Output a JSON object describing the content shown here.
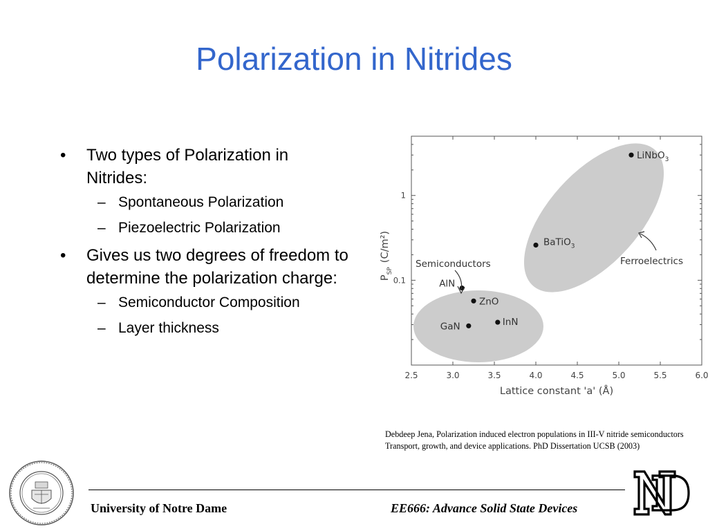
{
  "slide": {
    "title": "Polarization in Nitrides",
    "bullets": [
      {
        "text": "Two types of Polarization in Nitrides:",
        "subs": [
          "Spontaneous Polarization",
          "Piezoelectric Polarization"
        ]
      },
      {
        "text": "Gives us two degrees of freedom to determine the polarization charge:",
        "subs": [
          "Semiconductor Composition",
          "Layer thickness"
        ]
      }
    ],
    "citation": "Debdeep Jena, Polarization induced electron populations in III-V nitride semiconductors Transport, growth, and device applications. PhD Dissertation UCSB (2003)",
    "footer_left": "University of Notre Dame",
    "footer_right": "EE666: Advance Solid State Devices"
  },
  "colors": {
    "title": "#3366cc",
    "ellipse_fill": "#cccccc",
    "axis": "#555555"
  },
  "chart_data": {
    "type": "scatter",
    "xlabel": "Lattice constant 'a' (Å)",
    "ylabel_main": "P",
    "ylabel_sub": "SP",
    "ylabel_unit": "(C/m²)",
    "xlim": [
      2.5,
      6.0
    ],
    "ylim": [
      0.01,
      5
    ],
    "yscale": "log",
    "xticks": [
      "2.5",
      "3.0",
      "3.5",
      "4.0",
      "4.5",
      "5.0",
      "5.5",
      "6.0"
    ],
    "yticks": [
      {
        "value": 1,
        "label": "1"
      },
      {
        "value": 0.1,
        "label": "0.1"
      }
    ],
    "points": [
      {
        "name": "AlN",
        "x": 3.11,
        "y": 0.081
      },
      {
        "name": "ZnO",
        "x": 3.25,
        "y": 0.057
      },
      {
        "name": "InN",
        "x": 3.54,
        "y": 0.032
      },
      {
        "name": "GaN",
        "x": 3.19,
        "y": 0.029
      },
      {
        "name": "BaTiO3",
        "x": 4.0,
        "y": 0.26
      },
      {
        "name": "LiNbO3",
        "x": 5.15,
        "y": 3.0
      }
    ],
    "groups": [
      {
        "name": "Semiconductors",
        "members": [
          "AlN",
          "ZnO",
          "InN",
          "GaN"
        ]
      },
      {
        "name": "Ferroelectrics",
        "members": [
          "BaTiO3",
          "LiNbO3"
        ]
      }
    ]
  }
}
